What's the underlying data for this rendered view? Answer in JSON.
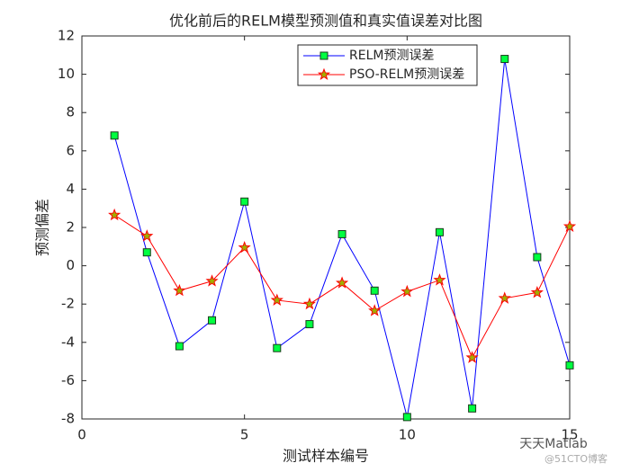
{
  "chart_data": {
    "type": "line",
    "title": "优化前后的RELM模型预测值和真实值误差对比图",
    "x_label": "测试样本编号",
    "y_label": "预测偏差",
    "x": [
      1,
      2,
      3,
      4,
      5,
      6,
      7,
      8,
      9,
      10,
      11,
      12,
      13,
      14,
      15
    ],
    "series": [
      {
        "name": "RELM预测误差",
        "color": "#0000ff",
        "marker": "square",
        "marker_fill": "#00ff40",
        "marker_edge": "#1a3a1a",
        "values": [
          6.8,
          0.7,
          -4.2,
          -2.85,
          3.35,
          -4.3,
          -3.05,
          1.65,
          -1.3,
          -7.9,
          1.75,
          -7.45,
          10.8,
          0.45,
          -5.2
        ]
      },
      {
        "name": "PSO-RELM预测误差",
        "color": "#ff0000",
        "marker": "star",
        "marker_fill": "#a0b000",
        "marker_edge": "#ff0000",
        "values": [
          2.65,
          1.55,
          -1.3,
          -0.8,
          0.95,
          -1.8,
          -2.0,
          -0.9,
          -2.35,
          -1.35,
          -0.75,
          -4.8,
          -1.7,
          -1.4,
          2.05
        ]
      }
    ],
    "xlim": [
      0,
      15
    ],
    "xticks": [
      0,
      5,
      10,
      15
    ],
    "ylim": [
      -8,
      12
    ],
    "yticks": [
      -8,
      -6,
      -4,
      -2,
      0,
      2,
      4,
      6,
      8,
      10,
      12
    ],
    "grid": false,
    "legend": "north-east"
  },
  "watermark": {
    "brand": "天天Matlab",
    "site": "@51CTO博客"
  }
}
